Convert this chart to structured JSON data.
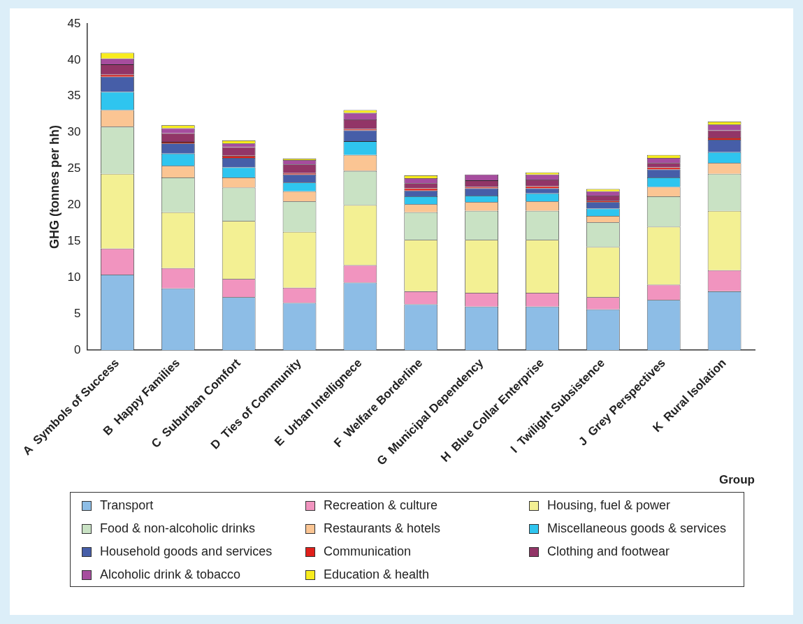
{
  "chart_data": {
    "type": "bar",
    "stacked": true,
    "xlabel": "Group",
    "ylabel": "GHG (tonnes per hh)",
    "categories": [
      "A  Symbols of Success",
      "B  Happy Families",
      "C  Suburban Comfort",
      "D  Ties of Community",
      "E  Urban Intellignece",
      "F  Welfare Borderline",
      "G  Municipal Dependency",
      "H  Blue Collar Enterprise",
      "I  Twilight Subsistence",
      "J  Grey Perspectives",
      "K  Rural Isolation"
    ],
    "series": [
      {
        "name": "Transport",
        "color": "#8dbde6",
        "values": [
          10.4,
          8.5,
          7.3,
          6.5,
          9.3,
          6.3,
          6.0,
          6.0,
          5.6,
          6.9,
          8.1
        ]
      },
      {
        "name": "Recreation & culture",
        "color": "#f194bf",
        "values": [
          3.6,
          2.8,
          2.5,
          2.1,
          2.4,
          1.8,
          1.9,
          1.9,
          1.7,
          2.1,
          2.9
        ]
      },
      {
        "name": "Housing, fuel & power",
        "color": "#f3f093",
        "values": [
          10.3,
          7.7,
          8.0,
          7.7,
          8.3,
          7.1,
          7.3,
          7.3,
          6.9,
          8.0,
          8.2
        ]
      },
      {
        "name": "Food & non-alcoholic drinks",
        "color": "#c9e2c4",
        "values": [
          6.5,
          4.8,
          4.6,
          4.2,
          4.7,
          3.8,
          4.0,
          4.0,
          3.4,
          4.2,
          5.1
        ]
      },
      {
        "name": "Restaurants & hotels",
        "color": "#fbc593",
        "values": [
          2.3,
          1.6,
          1.4,
          1.4,
          2.2,
          1.1,
          1.2,
          1.3,
          0.9,
          1.3,
          1.5
        ]
      },
      {
        "name": "Miscellaneous goods & services",
        "color": "#2fc5ef",
        "values": [
          2.5,
          1.7,
          1.4,
          1.2,
          1.9,
          1.1,
          0.9,
          1.1,
          1.0,
          1.3,
          1.5
        ]
      },
      {
        "name": "Household goods and services",
        "color": "#465ea8",
        "values": [
          2.1,
          1.4,
          1.3,
          1.1,
          1.5,
          0.8,
          1.0,
          0.7,
          0.9,
          1.1,
          1.7
        ]
      },
      {
        "name": "Communication",
        "color": "#e0201b",
        "values": [
          0.3,
          0.2,
          0.3,
          0.2,
          0.2,
          0.3,
          0.2,
          0.3,
          0.2,
          0.3,
          0.3
        ]
      },
      {
        "name": "Clothing and footwear",
        "color": "#923567",
        "values": [
          1.4,
          1.2,
          1.2,
          1.2,
          1.3,
          0.7,
          0.9,
          0.9,
          0.7,
          0.6,
          1.0
        ]
      },
      {
        "name": "Alcoholic drink & tobacco",
        "color": "#a64d9e",
        "values": [
          0.8,
          0.7,
          0.5,
          0.6,
          0.9,
          0.7,
          0.8,
          0.7,
          0.6,
          0.7,
          0.8
        ]
      },
      {
        "name": "Education & health",
        "color": "#f8ec1e",
        "values": [
          0.8,
          0.4,
          0.4,
          0.2,
          0.4,
          0.4,
          null,
          0.3,
          0.3,
          0.4,
          0.4
        ]
      }
    ],
    "ylim": [
      0,
      45
    ],
    "yticks": [
      0,
      5,
      10,
      15,
      20,
      25,
      30,
      35,
      40,
      45
    ],
    "grid": false,
    "legend": "bottom"
  }
}
